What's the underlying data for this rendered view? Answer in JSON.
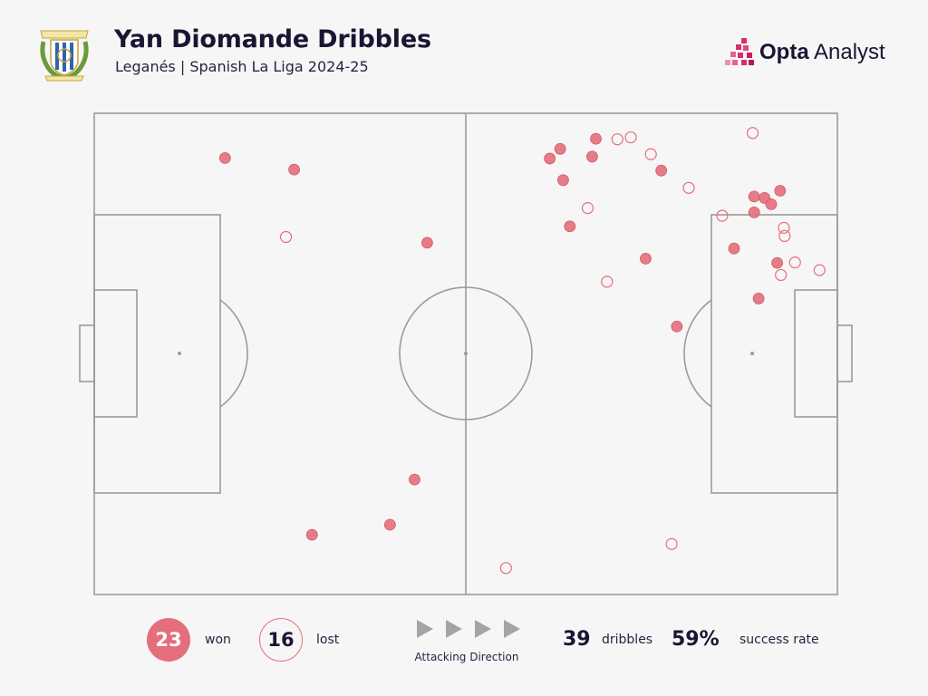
{
  "header": {
    "title": "Yan Diomande Dribbles",
    "subtitle": "Leganés | Spanish La Liga 2024-25",
    "brand_bold": "Opta",
    "brand_light": " Analyst"
  },
  "colors": {
    "won": "#e46f7b",
    "lost_stroke": "#e46f7b",
    "pitch_lines": "#9b9b9b",
    "background": "#f6f6f6"
  },
  "legend": {
    "won_count": "23",
    "won_label": "won",
    "lost_count": "16",
    "lost_label": "lost",
    "direction_label": "Attacking Direction",
    "direction_icon": "play-triangle-icon"
  },
  "stats": {
    "dribbles_value": "39",
    "dribbles_label": "dribbles",
    "success_value": "59%",
    "success_label": "success rate"
  },
  "chart_data": {
    "type": "scatter",
    "x_range": [
      0,
      100
    ],
    "y_range": [
      0,
      100
    ],
    "attacking_direction": "left-to-right",
    "won": [
      [
        17.6,
        9.3
      ],
      [
        26.9,
        11.7
      ],
      [
        44.8,
        26.9
      ],
      [
        61.3,
        9.4
      ],
      [
        62.7,
        7.4
      ],
      [
        67.5,
        5.3
      ],
      [
        67.0,
        9.0
      ],
      [
        63.1,
        13.9
      ],
      [
        76.3,
        11.9
      ],
      [
        64.0,
        23.5
      ],
      [
        74.2,
        30.2
      ],
      [
        78.4,
        44.3
      ],
      [
        86.1,
        28.1
      ],
      [
        88.8,
        17.3
      ],
      [
        88.8,
        20.6
      ],
      [
        90.2,
        17.6
      ],
      [
        91.1,
        18.9
      ],
      [
        92.3,
        16.1
      ],
      [
        91.9,
        31.1
      ],
      [
        89.4,
        38.5
      ],
      [
        43.1,
        76.1
      ],
      [
        39.8,
        85.5
      ],
      [
        29.3,
        87.6
      ]
    ],
    "lost": [
      [
        25.8,
        25.7
      ],
      [
        70.4,
        5.4
      ],
      [
        72.2,
        5.0
      ],
      [
        74.9,
        8.5
      ],
      [
        80.0,
        15.5
      ],
      [
        88.6,
        4.1
      ],
      [
        66.4,
        19.7
      ],
      [
        84.5,
        21.3
      ],
      [
        92.8,
        23.8
      ],
      [
        92.9,
        25.5
      ],
      [
        94.3,
        31.0
      ],
      [
        92.4,
        33.6
      ],
      [
        97.6,
        32.6
      ],
      [
        69.0,
        35.0
      ],
      [
        77.7,
        89.5
      ],
      [
        55.4,
        94.5
      ]
    ]
  }
}
